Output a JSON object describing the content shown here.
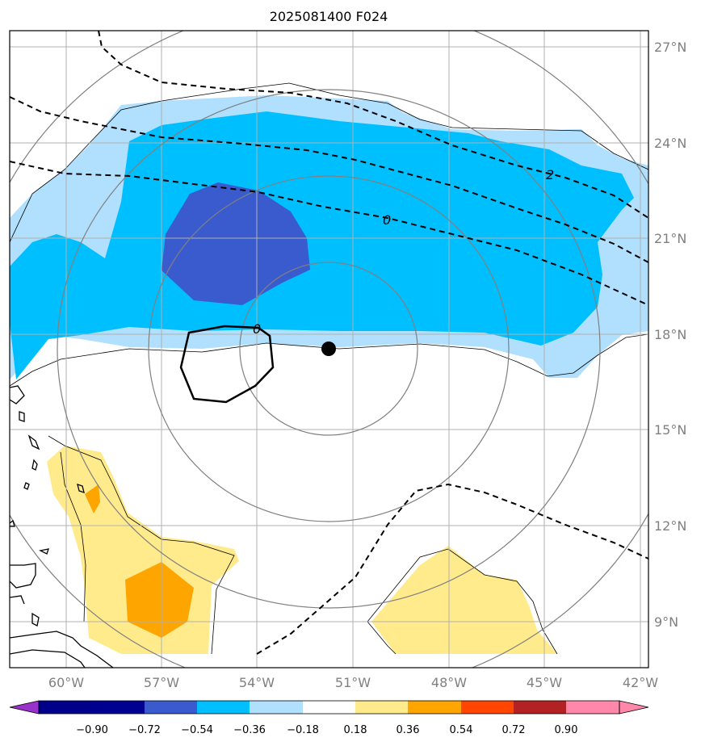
{
  "title": "2025081400 F024",
  "map": {
    "lon_labels": [
      "60°W",
      "57°W",
      "54°W",
      "51°W",
      "48°W",
      "45°W",
      "42°W"
    ],
    "lat_labels": [
      "27°N",
      "24°N",
      "21°N",
      "18°N",
      "15°N",
      "12°N",
      "9°N"
    ],
    "contour_labels": [
      "2",
      "0",
      "0"
    ],
    "colors": {
      "grid": "#b0b0b0",
      "range_rings": "#808080",
      "coast": "#000000"
    }
  },
  "colorbar": {
    "labels": [
      "−0.90",
      "−0.72",
      "−0.54",
      "−0.36",
      "−0.18",
      "0.18",
      "0.36",
      "0.54",
      "0.72",
      "0.90"
    ],
    "colors": [
      "#9932cc",
      "#00008b",
      "#3a5bcd",
      "#00bfff",
      "#b0e0fd",
      "#ffffff",
      "#ffeb8c",
      "#ffa500",
      "#ff4500",
      "#b22222",
      "#ff88aa"
    ]
  }
}
